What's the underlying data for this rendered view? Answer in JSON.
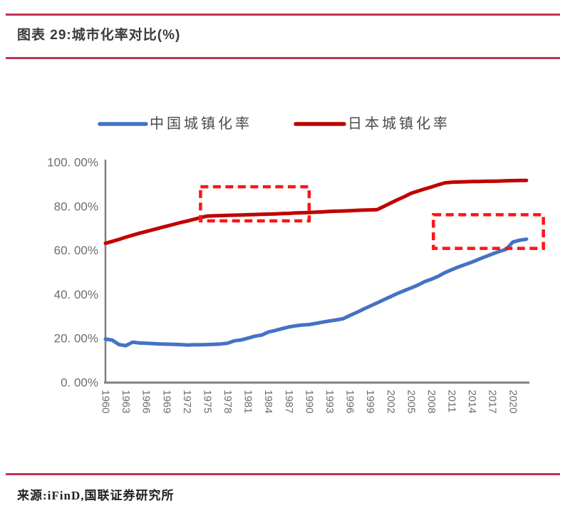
{
  "header": {
    "title": "图表 29:城市化率对比(%)"
  },
  "footer": {
    "text": "来源:iFinD,国联证券研究所"
  },
  "colors": {
    "accent_rule": "#C23354",
    "china_line": "#4472C4",
    "japan_line": "#C00000",
    "highlight_box": "#FF1414",
    "axis": "#7f7f7f",
    "tick_text": "#6e6e6e"
  },
  "legend": [
    {
      "label": "中国城镇化率",
      "color": "#4472C4"
    },
    {
      "label": "日本城镇化率",
      "color": "#C00000"
    }
  ],
  "chart_data": {
    "type": "line",
    "title": "城市化率对比(%)",
    "ylabel": "",
    "xlabel": "",
    "ylim": [
      0,
      100
    ],
    "grid": false,
    "legend_position": "top",
    "ytick_values": [
      0,
      20,
      40,
      60,
      80,
      100
    ],
    "ytick_labels": [
      "0. 00%",
      "20. 00%",
      "40. 00%",
      "60. 00%",
      "80. 00%",
      "100. 00%"
    ],
    "xtick_labels": [
      "1960",
      "1963",
      "1966",
      "1969",
      "1972",
      "1975",
      "1978",
      "1981",
      "1984",
      "1987",
      "1990",
      "1993",
      "1996",
      "1999",
      "2002",
      "2005",
      "2008",
      "2011",
      "2014",
      "2017",
      "2020"
    ],
    "x": [
      1960,
      1961,
      1962,
      1963,
      1964,
      1965,
      1966,
      1967,
      1968,
      1969,
      1970,
      1971,
      1972,
      1973,
      1974,
      1975,
      1976,
      1977,
      1978,
      1979,
      1980,
      1981,
      1982,
      1983,
      1984,
      1985,
      1986,
      1987,
      1988,
      1989,
      1990,
      1991,
      1992,
      1993,
      1994,
      1995,
      1996,
      1997,
      1998,
      1999,
      2000,
      2001,
      2002,
      2003,
      2004,
      2005,
      2006,
      2007,
      2008,
      2009,
      2010,
      2011,
      2012,
      2013,
      2014,
      2015,
      2016,
      2017,
      2018,
      2019,
      2020,
      2021,
      2022
    ],
    "series": [
      {
        "name": "中国城镇化率",
        "color": "#4472C4",
        "values": [
          19.8,
          19.3,
          17.3,
          16.8,
          18.4,
          18.0,
          17.9,
          17.7,
          17.6,
          17.5,
          17.4,
          17.3,
          17.1,
          17.2,
          17.2,
          17.3,
          17.4,
          17.6,
          17.9,
          19.0,
          19.4,
          20.2,
          21.1,
          21.6,
          23.0,
          23.7,
          24.5,
          25.3,
          25.8,
          26.2,
          26.4,
          26.9,
          27.5,
          28.0,
          28.5,
          29.0,
          30.5,
          31.9,
          33.4,
          34.8,
          36.2,
          37.7,
          39.1,
          40.5,
          41.8,
          43.0,
          44.3,
          45.9,
          47.0,
          48.3,
          50.0,
          51.3,
          52.6,
          53.7,
          54.8,
          56.1,
          57.3,
          58.5,
          59.6,
          60.6,
          63.9,
          64.7,
          65.2
        ]
      },
      {
        "name": "日本城镇化率",
        "color": "#C00000",
        "values": [
          63.3,
          64.2,
          65.1,
          66.1,
          67.0,
          67.9,
          68.7,
          69.5,
          70.3,
          71.1,
          71.9,
          72.7,
          73.4,
          74.2,
          75.0,
          75.7,
          75.8,
          75.9,
          76.0,
          76.1,
          76.2,
          76.3,
          76.4,
          76.5,
          76.6,
          76.7,
          76.8,
          76.9,
          77.1,
          77.2,
          77.3,
          77.5,
          77.6,
          77.8,
          77.9,
          78.0,
          78.1,
          78.3,
          78.4,
          78.5,
          78.6,
          80.1,
          81.6,
          83.1,
          84.5,
          86.0,
          87.0,
          88.0,
          88.9,
          89.9,
          90.8,
          91.1,
          91.2,
          91.3,
          91.4,
          91.4,
          91.5,
          91.5,
          91.6,
          91.7,
          91.8,
          91.9,
          91.9
        ]
      }
    ],
    "annotations": [
      {
        "shape": "dashed-rect",
        "x1_year": 1974.0,
        "x2_year": 1990.0,
        "y1_pct": 73.5,
        "y2_pct": 89.0,
        "color": "#FF1414"
      },
      {
        "shape": "dashed-rect",
        "x1_year": 2008.3,
        "x2_year": 2024.5,
        "y1_pct": 61.0,
        "y2_pct": 76.3,
        "color": "#FF1414"
      }
    ]
  }
}
